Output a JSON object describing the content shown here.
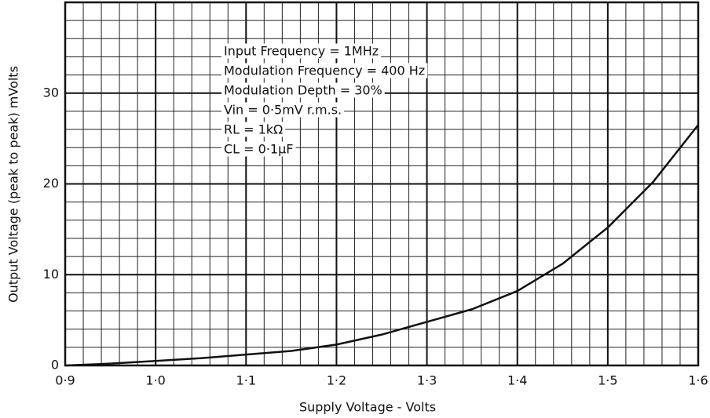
{
  "chart_data": {
    "type": "line",
    "x_label": "Supply Voltage - Volts",
    "y_label": "Output Voltage (peak to peak) mVolts",
    "annotations": [
      "Input Frequency = 1MHz",
      "Modulation Frequency = 400 Hz",
      "Modulation Depth = 30%",
      "Vin = 0·5mV r.m.s.",
      "RL = 1kΩ",
      "CL = 0·1μF"
    ],
    "x": [
      0.9,
      0.95,
      1.0,
      1.05,
      1.1,
      1.15,
      1.2,
      1.25,
      1.3,
      1.35,
      1.4,
      1.45,
      1.5,
      1.55,
      1.6
    ],
    "series": [
      {
        "color": "#111111",
        "values": [
          0,
          0.2,
          0.5,
          0.8,
          1.2,
          1.6,
          2.3,
          3.4,
          4.8,
          6.2,
          8.2,
          11.2,
          15.2,
          20.2,
          26.5
        ]
      }
    ],
    "xlim": [
      0.9,
      1.6
    ],
    "xticks": [
      {
        "value": 0.9,
        "label": "0·9"
      },
      {
        "value": 1.0,
        "label": "1·0"
      },
      {
        "value": 1.1,
        "label": "1·1"
      },
      {
        "value": 1.2,
        "label": "1·2"
      },
      {
        "value": 1.3,
        "label": "1·3"
      },
      {
        "value": 1.4,
        "label": "1·4"
      },
      {
        "value": 1.5,
        "label": "1·5"
      },
      {
        "value": 1.6,
        "label": "1·6"
      }
    ],
    "ylim": [
      0,
      40
    ],
    "yticks": [
      0,
      10,
      20,
      30
    ],
    "grid": true
  }
}
